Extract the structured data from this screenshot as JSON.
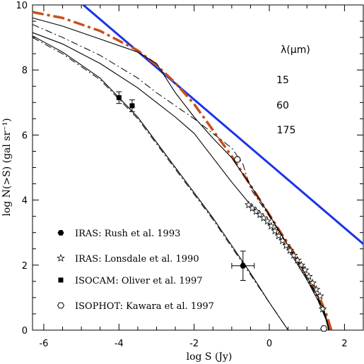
{
  "chart_data": {
    "type": "line",
    "xlabel": "log S (Jy)",
    "ylabel": "log N(>S) (gal sr⁻¹)",
    "xlim": [
      -6.3,
      2.5
    ],
    "ylim": [
      0,
      10
    ],
    "x_ticks": [
      "-6",
      "-4",
      "-2",
      "0",
      "2"
    ],
    "y_ticks": [
      "0",
      "2",
      "4",
      "6",
      "8",
      "10"
    ],
    "wavelength_header": "λ(μm)",
    "wavelengths": [
      "15",
      "60",
      "175"
    ],
    "colors": {
      "euclidean": "#1a33e6",
      "highlight": "#c8501e",
      "model": "#000000"
    },
    "series": [
      {
        "style": "euclidean",
        "points": [
          [
            -4.95,
            10.0
          ],
          [
            2.5,
            2.65
          ]
        ]
      },
      {
        "style": "highlight-dashdot",
        "points": [
          [
            -6.3,
            9.78
          ],
          [
            -5.5,
            9.6
          ],
          [
            -4.5,
            9.2
          ],
          [
            -3.5,
            8.6
          ],
          [
            -3.0,
            8.15
          ],
          [
            -2.5,
            7.6
          ],
          [
            -2.0,
            6.95
          ],
          [
            -1.5,
            6.15
          ],
          [
            -1.0,
            5.35
          ],
          [
            -0.5,
            4.45
          ],
          [
            0.0,
            3.55
          ],
          [
            0.5,
            2.65
          ],
          [
            1.0,
            1.75
          ],
          [
            1.3,
            1.1
          ],
          [
            1.5,
            0.55
          ],
          [
            1.65,
            0.0
          ]
        ]
      },
      {
        "style": "solid",
        "points": [
          [
            -6.3,
            9.6
          ],
          [
            -5.5,
            9.35
          ],
          [
            -4.5,
            8.95
          ],
          [
            -3.5,
            8.55
          ],
          [
            -3.0,
            8.2
          ],
          [
            -2.5,
            7.3
          ],
          [
            -2.0,
            6.55
          ],
          [
            -1.5,
            5.9
          ],
          [
            -1.0,
            5.3
          ],
          [
            -0.5,
            4.45
          ],
          [
            0.0,
            3.55
          ],
          [
            0.5,
            2.6
          ],
          [
            1.0,
            1.65
          ],
          [
            1.3,
            1.0
          ],
          [
            1.5,
            0.45
          ],
          [
            1.6,
            0.0
          ]
        ]
      },
      {
        "style": "solid",
        "points": [
          [
            -6.3,
            9.15
          ],
          [
            -5.5,
            8.8
          ],
          [
            -4.5,
            8.2
          ],
          [
            -3.5,
            7.45
          ],
          [
            -3.0,
            7.0
          ],
          [
            -2.5,
            6.55
          ],
          [
            -2.0,
            6.05
          ],
          [
            -1.5,
            5.3
          ],
          [
            -1.0,
            4.55
          ],
          [
            -0.5,
            3.85
          ],
          [
            0.0,
            3.25
          ],
          [
            0.5,
            2.5
          ],
          [
            1.0,
            1.55
          ],
          [
            1.3,
            0.9
          ],
          [
            1.5,
            0.35
          ],
          [
            1.58,
            0.0
          ]
        ]
      },
      {
        "style": "dashdot",
        "points": [
          [
            -6.3,
            9.4
          ],
          [
            -5.5,
            9.0
          ],
          [
            -4.5,
            8.45
          ],
          [
            -3.5,
            7.75
          ],
          [
            -3.0,
            7.3
          ],
          [
            -2.5,
            6.9
          ],
          [
            -2.0,
            6.5
          ],
          [
            -1.5,
            6.05
          ],
          [
            -1.0,
            5.6
          ],
          [
            -0.7,
            5.1
          ],
          [
            -0.5,
            4.35
          ],
          [
            0.0,
            3.5
          ],
          [
            0.5,
            2.6
          ],
          [
            1.0,
            1.6
          ],
          [
            1.3,
            0.95
          ],
          [
            1.5,
            0.4
          ],
          [
            1.6,
            0.0
          ]
        ]
      },
      {
        "style": "solid",
        "points": [
          [
            -6.3,
            9.05
          ],
          [
            -5.5,
            8.55
          ],
          [
            -4.5,
            7.75
          ],
          [
            -3.5,
            6.55
          ],
          [
            -2.5,
            5.0
          ],
          [
            -1.5,
            3.45
          ],
          [
            -0.5,
            1.75
          ],
          [
            0.0,
            0.85
          ],
          [
            0.5,
            0.0
          ]
        ]
      },
      {
        "style": "dashdot",
        "points": [
          [
            -6.3,
            9.0
          ],
          [
            -5.5,
            8.5
          ],
          [
            -4.5,
            7.7
          ],
          [
            -3.5,
            6.5
          ],
          [
            -2.5,
            4.95
          ],
          [
            -1.5,
            3.4
          ],
          [
            -0.5,
            1.7
          ],
          [
            0.0,
            0.85
          ],
          [
            0.5,
            0.0
          ]
        ]
      }
    ],
    "legend": [
      {
        "marker": "filled-hexagon",
        "label": "IRAS: Rush et al. 1993"
      },
      {
        "marker": "star",
        "label": "IRAS: Lonsdale et al. 1990"
      },
      {
        "marker": "filled-square",
        "label": "ISOCAM: Oliver et al. 1997"
      },
      {
        "marker": "open-hexagon",
        "label": "ISOPHOT: Kawara et al. 1997"
      }
    ],
    "data_points": [
      {
        "marker": "filled-hexagon",
        "x": -0.7,
        "y": 1.98,
        "xerr": 0.3,
        "yerr": 0.45
      },
      {
        "marker": "filled-square",
        "x": -4.0,
        "y": 7.15,
        "xerr": 0,
        "yerr": 0.18
      },
      {
        "marker": "filled-square",
        "x": -3.65,
        "y": 6.9,
        "xerr": 0,
        "yerr": 0.18
      },
      {
        "marker": "open-hexagon",
        "x": -0.85,
        "y": 5.25,
        "xerr": 0,
        "yerr": 0
      },
      {
        "marker": "open-hexagon",
        "x": 1.45,
        "y": 0.05,
        "xerr": 0,
        "yerr": 0
      }
    ],
    "star_points": [
      [
        -0.55,
        3.85
      ],
      [
        -0.45,
        3.75
      ],
      [
        -0.35,
        3.65
      ],
      [
        -0.25,
        3.55
      ],
      [
        -0.15,
        3.45
      ],
      [
        -0.05,
        3.35
      ],
      [
        0.05,
        3.2
      ],
      [
        0.15,
        3.05
      ],
      [
        0.25,
        2.9
      ],
      [
        0.35,
        2.75
      ],
      [
        0.45,
        2.6
      ],
      [
        0.55,
        2.45
      ],
      [
        0.65,
        2.3
      ],
      [
        0.75,
        2.15
      ],
      [
        0.85,
        2.0
      ],
      [
        0.95,
        1.85
      ],
      [
        1.05,
        1.65
      ],
      [
        1.15,
        1.45
      ],
      [
        1.25,
        1.25
      ],
      [
        1.35,
        1.05
      ],
      [
        1.42,
        0.65
      ]
    ]
  }
}
